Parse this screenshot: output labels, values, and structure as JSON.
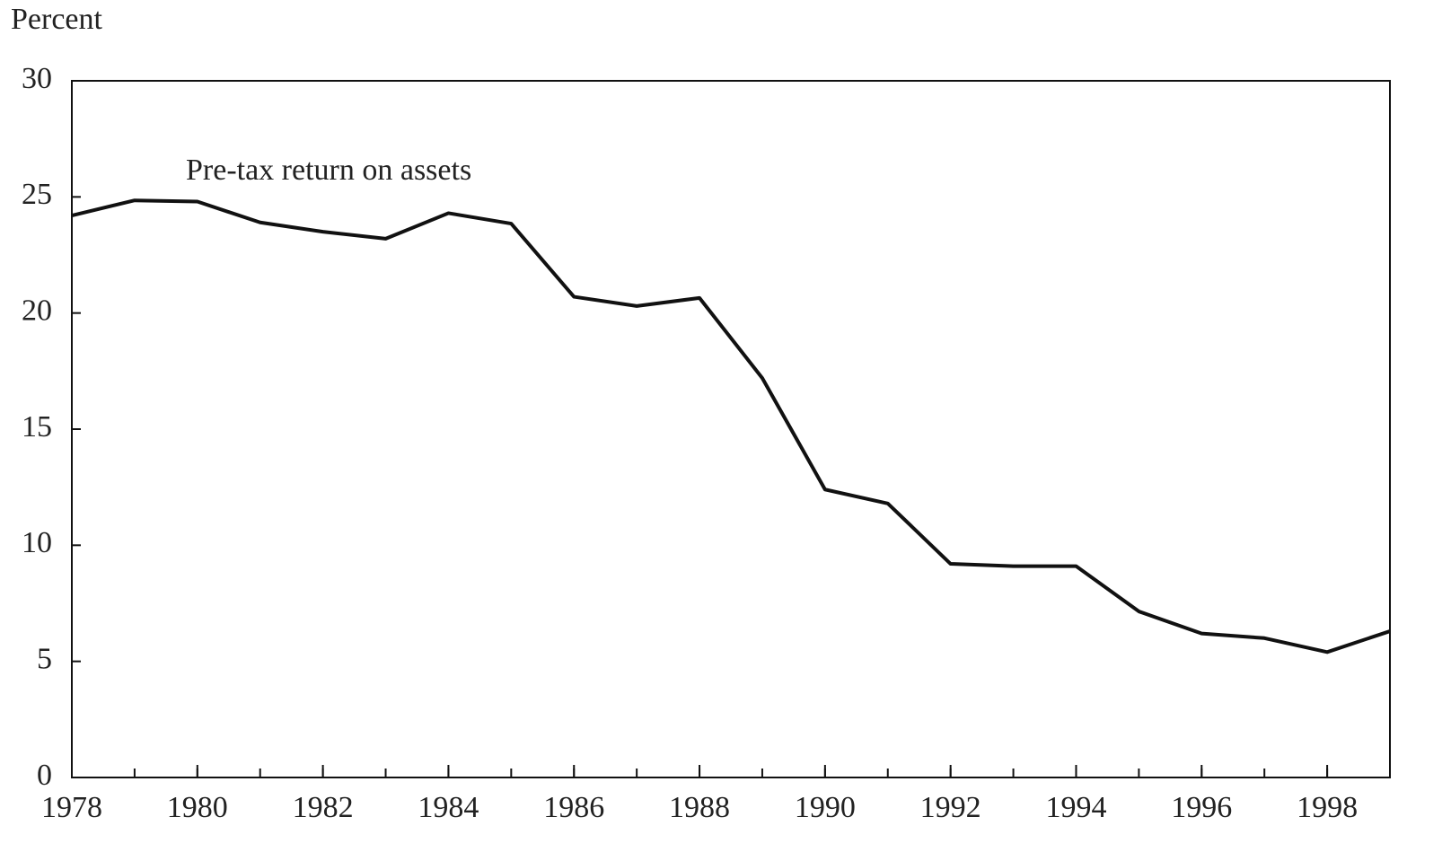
{
  "chart_data": {
    "type": "line",
    "y_label": "Percent",
    "annotation": "Pre-tax return on assets",
    "x": [
      1978,
      1979,
      1980,
      1981,
      1982,
      1983,
      1984,
      1985,
      1986,
      1987,
      1988,
      1989,
      1990,
      1991,
      1992,
      1993,
      1994,
      1995,
      1996,
      1997,
      1998,
      1999
    ],
    "series": [
      {
        "name": "Pre-tax return on assets",
        "color": "#111111",
        "values": [
          24.2,
          24.85,
          24.8,
          23.9,
          23.5,
          23.2,
          24.3,
          23.85,
          20.7,
          20.3,
          20.65,
          17.2,
          12.4,
          11.8,
          9.2,
          9.1,
          9.1,
          7.15,
          6.2,
          6.0,
          5.4,
          6.3
        ]
      }
    ],
    "xlim": [
      1978,
      1999
    ],
    "xticks": [
      1978,
      1980,
      1982,
      1984,
      1986,
      1988,
      1990,
      1992,
      1994,
      1996,
      1998
    ],
    "ylim": [
      0,
      30
    ],
    "yticks": [
      0,
      5,
      10,
      15,
      20,
      25,
      30
    ],
    "grid": false
  }
}
